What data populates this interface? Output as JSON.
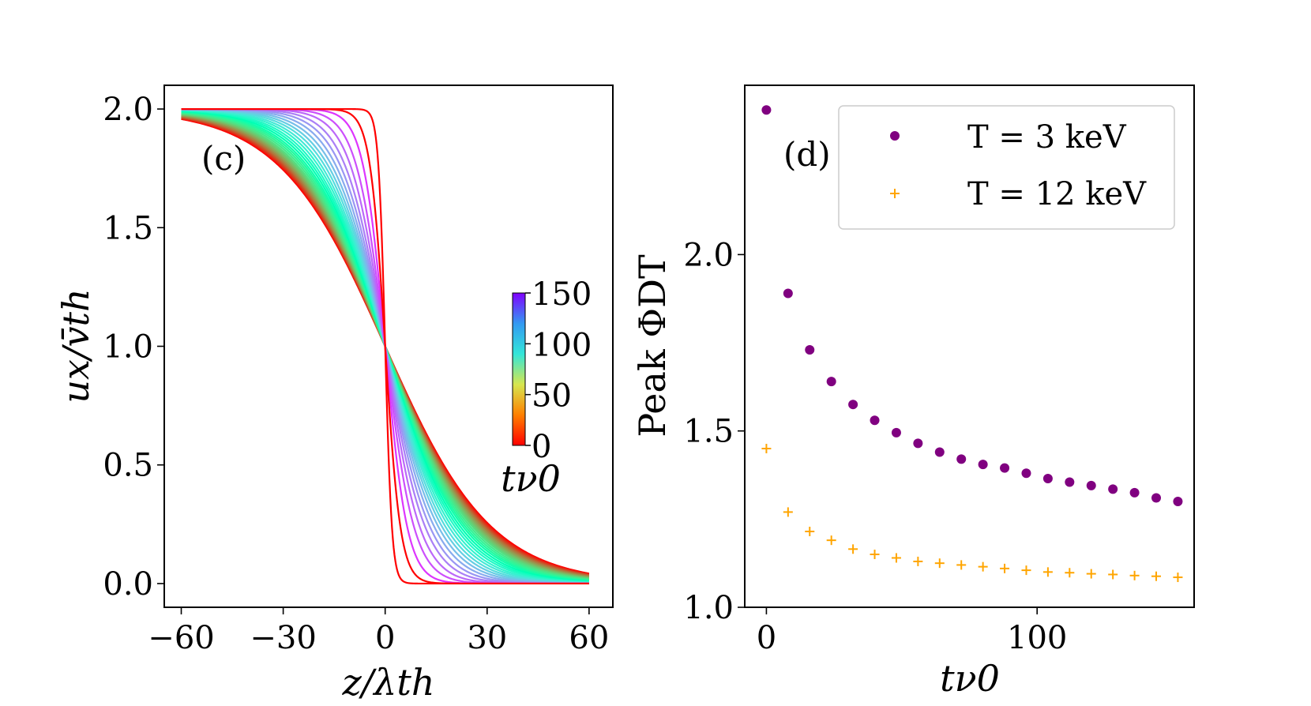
{
  "chart_data": [
    {
      "type": "line",
      "panel_label": "(c)",
      "xlabel": "z/λth",
      "ylabel": "ux/v̄th",
      "xlim": [
        -65,
        67
      ],
      "ylim": [
        -0.1,
        2.1
      ],
      "xticks": [
        -60,
        -30,
        0,
        30,
        60
      ],
      "xtick_labels": [
        "−60",
        "−30",
        "0",
        "30",
        "60"
      ],
      "yticks": [
        0.0,
        0.5,
        1.0,
        1.5,
        2.0
      ],
      "ytick_labels": [
        "0.0",
        "0.5",
        "1.0",
        "1.5",
        "2.0"
      ],
      "grid": false,
      "curve_model": "u = 1 - tanh(z / w)",
      "series_widths": [
        2.0,
        4.5,
        6.5,
        8.5,
        10.2,
        11.8,
        13.2,
        14.5,
        15.7,
        16.8,
        17.8,
        18.8,
        19.7,
        20.6,
        21.4,
        22.2,
        23.0,
        23.7,
        24.4,
        25.1,
        25.8,
        26.4,
        27.0,
        27.6,
        28.2,
        28.8,
        29.3,
        29.8,
        30.3,
        30.8,
        31.3
      ],
      "series_times": [
        0,
        5,
        10,
        15,
        20,
        25,
        30,
        35,
        40,
        45,
        50,
        55,
        60,
        65,
        70,
        75,
        80,
        85,
        90,
        95,
        100,
        105,
        110,
        115,
        120,
        125,
        130,
        135,
        140,
        145,
        150
      ],
      "colormap": "rainbow",
      "colorbar": {
        "label": "tν0",
        "min": 0,
        "max": 150,
        "ticks": [
          0,
          50,
          100,
          150
        ],
        "tick_labels": [
          "0",
          "50",
          "100",
          "150"
        ]
      }
    },
    {
      "type": "scatter",
      "panel_label": "(d)",
      "xlabel": "tν0",
      "ylabel": "Peak ΦDT",
      "xlim": [
        -8,
        158
      ],
      "ylim": [
        1.0,
        2.48
      ],
      "xticks": [
        0,
        100
      ],
      "xtick_labels": [
        "0",
        "100"
      ],
      "yticks": [
        1.0,
        1.5,
        2.0
      ],
      "ytick_labels": [
        "1.0",
        "1.5",
        "2.0"
      ],
      "grid": false,
      "legend_position": "top-right",
      "series": [
        {
          "name": "T = 3 keV",
          "marker": "circle",
          "color": "#800080",
          "x": [
            0,
            8,
            16,
            24,
            32,
            40,
            48,
            56,
            64,
            72,
            80,
            88,
            96,
            104,
            112,
            120,
            128,
            136,
            144,
            152
          ],
          "y": [
            2.41,
            1.89,
            1.73,
            1.64,
            1.575,
            1.53,
            1.495,
            1.465,
            1.44,
            1.42,
            1.405,
            1.395,
            1.38,
            1.365,
            1.355,
            1.345,
            1.335,
            1.325,
            1.31,
            1.3
          ]
        },
        {
          "name": "T = 12 keV",
          "marker": "plus",
          "color": "#FFA500",
          "x": [
            0,
            8,
            16,
            24,
            32,
            40,
            48,
            56,
            64,
            72,
            80,
            88,
            96,
            104,
            112,
            120,
            128,
            136,
            144,
            152
          ],
          "y": [
            1.45,
            1.27,
            1.215,
            1.19,
            1.165,
            1.15,
            1.14,
            1.13,
            1.125,
            1.12,
            1.115,
            1.11,
            1.105,
            1.1,
            1.098,
            1.095,
            1.093,
            1.09,
            1.088,
            1.085
          ]
        }
      ]
    }
  ]
}
